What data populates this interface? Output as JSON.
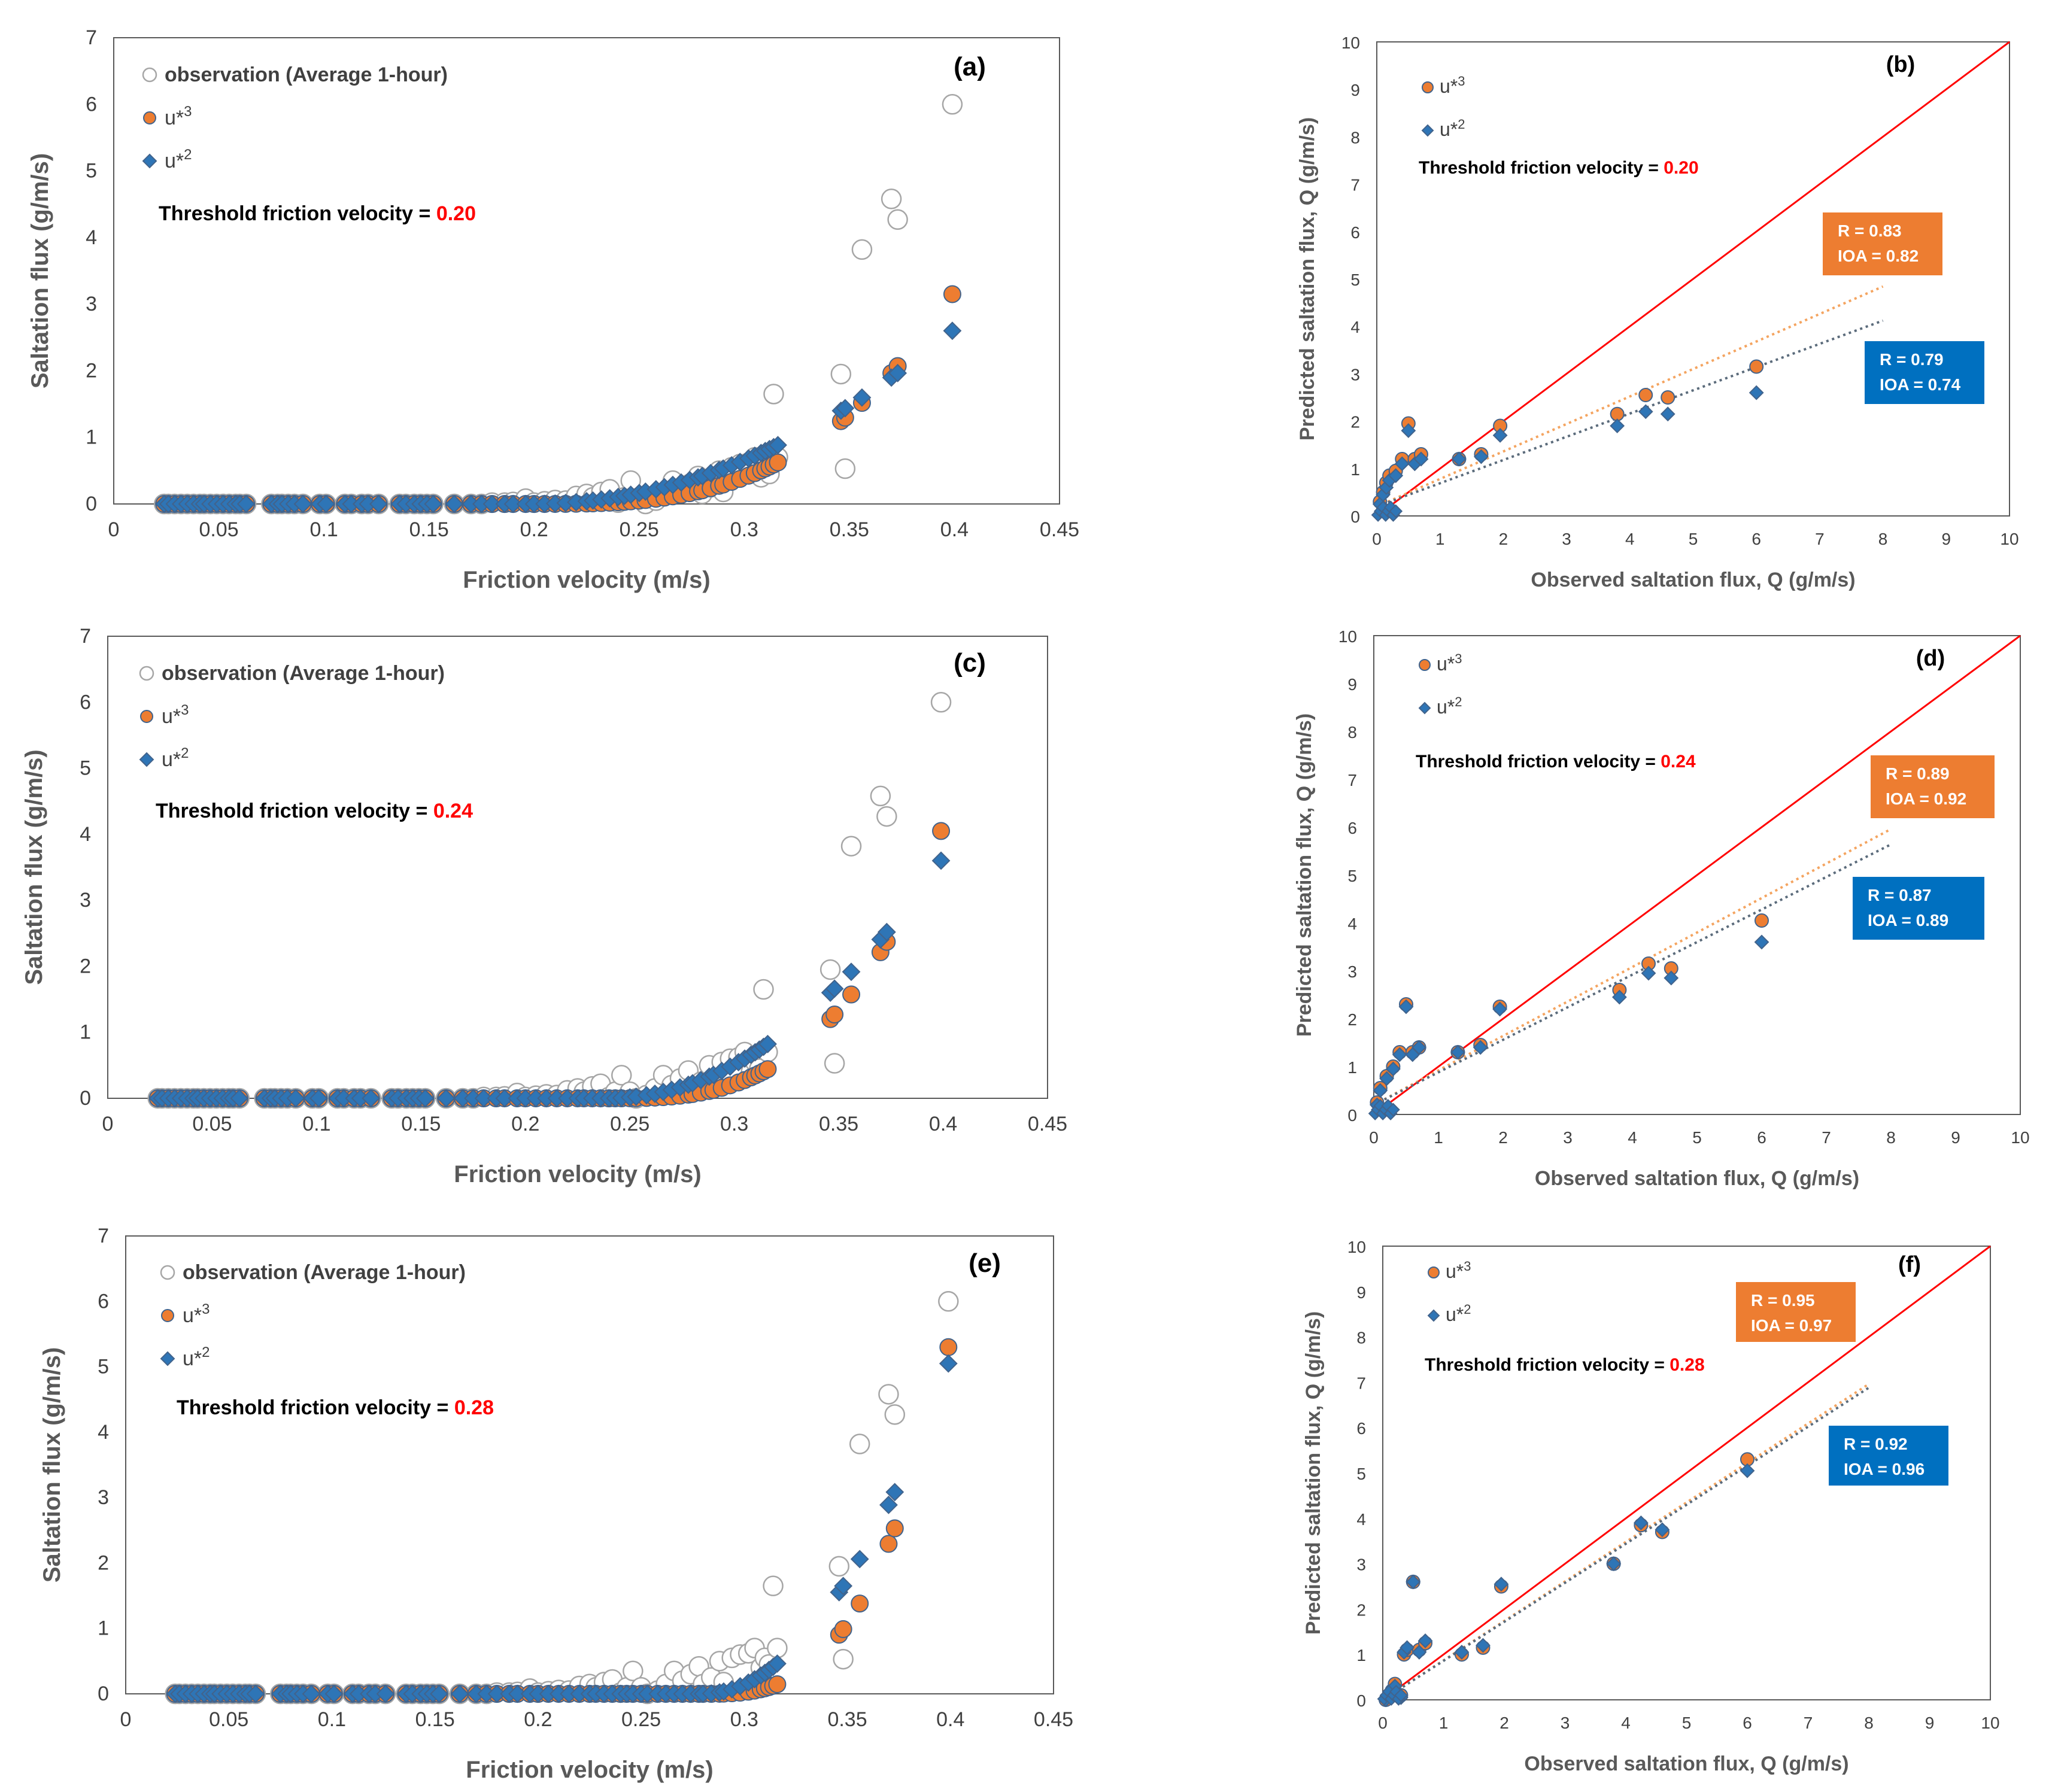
{
  "colors": {
    "observation_stroke": "#a6a6a6",
    "u3_fill": "#ed7d31",
    "u2_fill": "#2e75b6",
    "marker_stroke": "#41638c",
    "one_to_one": "#ff0000",
    "trend_u3": "#f4a460",
    "trend_u2": "#5b6b7b",
    "highlight": "#ff0000",
    "box_u3": "#ed7d31",
    "box_u2": "#0070c0",
    "axis": "#595959",
    "text": "#404040"
  },
  "chart_data": [
    {
      "panel": "(a)",
      "type": "scatter",
      "xlabel": "Friction velocity (m/s)",
      "ylabel": "Saltation flux (g/m/s)",
      "xlim": [
        0,
        0.45
      ],
      "ylim": [
        0,
        7
      ],
      "xticks": [
        "0",
        "0.05",
        "0.1",
        "0.15",
        "0.2",
        "0.25",
        "0.3",
        "0.35",
        "0.4",
        "0.45"
      ],
      "yticks": [
        "0",
        "1",
        "2",
        "3",
        "4",
        "5",
        "6",
        "7"
      ],
      "legend": [
        {
          "label": "observation (Average 1-hour)",
          "sup": ""
        },
        {
          "label": "u*",
          "sup": "3"
        },
        {
          "label": "u*",
          "sup": "2"
        }
      ],
      "threshold_label": "Threshold friction velocity = ",
      "threshold_value": "0.20",
      "model": {
        "threshold": 0.2,
        "series": [
          {
            "name": "u*3",
            "power": 3,
            "scale": 1.02
          },
          {
            "name": "u*2",
            "power": 2,
            "scale": 0.85
          }
        ]
      }
    },
    {
      "panel": "(c)",
      "type": "scatter",
      "xlabel": "Friction velocity (m/s)",
      "ylabel": "Saltation flux (g/m/s)",
      "xlim": [
        0,
        0.45
      ],
      "ylim": [
        0,
        7
      ],
      "xticks": [
        "0",
        "0.05",
        "0.1",
        "0.15",
        "0.2",
        "0.25",
        "0.3",
        "0.35",
        "0.4",
        "0.45"
      ],
      "yticks": [
        "0",
        "1",
        "2",
        "3",
        "4",
        "5",
        "6",
        "7"
      ],
      "legend": [
        {
          "label": "observation (Average 1-hour)",
          "sup": ""
        },
        {
          "label": "u*",
          "sup": "3"
        },
        {
          "label": "u*",
          "sup": "2"
        }
      ],
      "threshold_label": "Threshold friction velocity = ",
      "threshold_value": "0.24",
      "model": {
        "threshold": 0.24,
        "series": [
          {
            "name": "u*3",
            "power": 3,
            "scale": 1.0
          },
          {
            "name": "u*2",
            "power": 2,
            "scale": 0.9
          }
        ]
      }
    },
    {
      "panel": "(e)",
      "type": "scatter",
      "xlabel": "Friction velocity (m/s)",
      "ylabel": "Saltation flux (g/m/s)",
      "xlim": [
        0,
        0.45
      ],
      "ylim": [
        0,
        7
      ],
      "xticks": [
        "0",
        "0.05",
        "0.1",
        "0.15",
        "0.2",
        "0.25",
        "0.3",
        "0.35",
        "0.4",
        "0.45"
      ],
      "yticks": [
        "0",
        "1",
        "2",
        "3",
        "4",
        "5",
        "6",
        "7"
      ],
      "legend": [
        {
          "label": "observation (Average 1-hour)",
          "sup": ""
        },
        {
          "label": "u*",
          "sup": "3"
        },
        {
          "label": "u*",
          "sup": "2"
        }
      ],
      "threshold_label": "Threshold friction velocity = ",
      "threshold_value": "0.28",
      "model": {
        "threshold": 0.28,
        "series": [
          {
            "name": "u*3",
            "power": 3,
            "scale": 1.0
          },
          {
            "name": "u*2",
            "power": 2,
            "scale": 0.96
          }
        ]
      }
    },
    {
      "panel": "(b)",
      "type": "scatter",
      "xlabel": "Observed saltation flux, Q (g/m/s)",
      "ylabel": "Predicted saltation flux, Q (g/m/s)",
      "xlim": [
        0,
        10
      ],
      "ylim": [
        0,
        10
      ],
      "xticks": [
        "0",
        "1",
        "2",
        "3",
        "4",
        "5",
        "6",
        "7",
        "8",
        "9",
        "10"
      ],
      "yticks": [
        "0",
        "1",
        "2",
        "3",
        "4",
        "5",
        "6",
        "7",
        "8",
        "9",
        "10"
      ],
      "legend": [
        {
          "label": "u*",
          "sup": "3"
        },
        {
          "label": "u*",
          "sup": "2"
        }
      ],
      "threshold_label": "Threshold friction velocity = ",
      "threshold_value": "0.20",
      "stats_u3": [
        "R = 0.83",
        "IOA = 0.82"
      ],
      "stats_u2": [
        "R = 0.79",
        "IOA = 0.74"
      ],
      "trend_u3": {
        "slope": 0.58,
        "intercept": 0.2
      },
      "trend_u2": {
        "slope": 0.49,
        "intercept": 0.2
      },
      "series": [
        {
          "name": "u*3",
          "points": [
            [
              0.05,
              0.3
            ],
            [
              0.1,
              0.5
            ],
            [
              0.15,
              0.7
            ],
            [
              0.2,
              0.85
            ],
            [
              0.3,
              0.95
            ],
            [
              0.4,
              1.2
            ],
            [
              0.5,
              1.95
            ],
            [
              0.6,
              1.2
            ],
            [
              0.7,
              1.3
            ],
            [
              1.3,
              1.2
            ],
            [
              1.65,
              1.3
            ],
            [
              1.95,
              1.9
            ],
            [
              3.8,
              2.15
            ],
            [
              4.25,
              2.55
            ],
            [
              4.6,
              2.5
            ],
            [
              6.0,
              3.15
            ]
          ]
        },
        {
          "name": "u*2",
          "points": [
            [
              0.05,
              0.25
            ],
            [
              0.1,
              0.45
            ],
            [
              0.15,
              0.6
            ],
            [
              0.2,
              0.75
            ],
            [
              0.3,
              0.85
            ],
            [
              0.4,
              1.1
            ],
            [
              0.5,
              1.8
            ],
            [
              0.6,
              1.1
            ],
            [
              0.7,
              1.2
            ],
            [
              1.3,
              1.2
            ],
            [
              1.65,
              1.25
            ],
            [
              1.95,
              1.7
            ],
            [
              3.8,
              1.9
            ],
            [
              4.25,
              2.2
            ],
            [
              4.6,
              2.15
            ],
            [
              6.0,
              2.6
            ]
          ]
        }
      ]
    },
    {
      "panel": "(d)",
      "type": "scatter",
      "xlabel": "Observed saltation flux, Q (g/m/s)",
      "ylabel": "Predicted saltation flux, Q (g/m/s)",
      "xlim": [
        0,
        10
      ],
      "ylim": [
        0,
        10
      ],
      "xticks": [
        "0",
        "1",
        "2",
        "3",
        "4",
        "5",
        "6",
        "7",
        "8",
        "9",
        "10"
      ],
      "yticks": [
        "0",
        "1",
        "2",
        "3",
        "4",
        "5",
        "6",
        "7",
        "8",
        "9",
        "10"
      ],
      "legend": [
        {
          "label": "u*",
          "sup": "3"
        },
        {
          "label": "u*",
          "sup": "2"
        }
      ],
      "threshold_label": "Threshold friction velocity = ",
      "threshold_value": "0.24",
      "stats_u3": [
        "R = 0.89",
        "IOA = 0.92"
      ],
      "stats_u2": [
        "R = 0.87",
        "IOA = 0.89"
      ],
      "trend_u3": {
        "slope": 0.72,
        "intercept": 0.2
      },
      "trend_u2": {
        "slope": 0.68,
        "intercept": 0.2
      },
      "series": [
        {
          "name": "u*3",
          "points": [
            [
              0.05,
              0.25
            ],
            [
              0.1,
              0.55
            ],
            [
              0.2,
              0.8
            ],
            [
              0.3,
              1.0
            ],
            [
              0.4,
              1.3
            ],
            [
              0.5,
              2.3
            ],
            [
              0.6,
              1.3
            ],
            [
              0.7,
              1.4
            ],
            [
              1.3,
              1.3
            ],
            [
              1.65,
              1.45
            ],
            [
              1.95,
              2.25
            ],
            [
              3.8,
              2.6
            ],
            [
              4.25,
              3.15
            ],
            [
              4.6,
              3.05
            ],
            [
              6.0,
              4.05
            ]
          ]
        },
        {
          "name": "u*2",
          "points": [
            [
              0.05,
              0.2
            ],
            [
              0.1,
              0.5
            ],
            [
              0.2,
              0.75
            ],
            [
              0.3,
              0.95
            ],
            [
              0.4,
              1.25
            ],
            [
              0.5,
              2.25
            ],
            [
              0.6,
              1.25
            ],
            [
              0.7,
              1.4
            ],
            [
              1.3,
              1.3
            ],
            [
              1.65,
              1.4
            ],
            [
              1.95,
              2.2
            ],
            [
              3.8,
              2.45
            ],
            [
              4.25,
              2.95
            ],
            [
              4.6,
              2.85
            ],
            [
              6.0,
              3.6
            ]
          ]
        }
      ]
    },
    {
      "panel": "(f)",
      "type": "scatter",
      "xlabel": "Observed saltation flux, Q (g/m/s)",
      "ylabel": "Predicted saltation flux, Q (g/m/s)",
      "xlim": [
        0,
        10
      ],
      "ylim": [
        0,
        10
      ],
      "xticks": [
        "0",
        "1",
        "2",
        "3",
        "4",
        "5",
        "6",
        "7",
        "8",
        "9",
        "10"
      ],
      "yticks": [
        "0",
        "1",
        "2",
        "3",
        "4",
        "5",
        "6",
        "7",
        "8",
        "9",
        "10"
      ],
      "legend": [
        {
          "label": "u*",
          "sup": "3"
        },
        {
          "label": "u*",
          "sup": "2"
        }
      ],
      "threshold_label": "Threshold friction velocity = ",
      "threshold_value": "0.28",
      "stats_u3": [
        "R = 0.95",
        "IOA = 0.97"
      ],
      "stats_u2": [
        "R = 0.92",
        "IOA = 0.96"
      ],
      "trend_u3": {
        "slope": 0.87,
        "intercept": 0.0
      },
      "trend_u2": {
        "slope": 0.86,
        "intercept": 0.0
      },
      "series": [
        {
          "name": "u*3",
          "points": [
            [
              0.05,
              0.0
            ],
            [
              0.15,
              0.2
            ],
            [
              0.2,
              0.35
            ],
            [
              0.3,
              0.1
            ],
            [
              0.35,
              1.0
            ],
            [
              0.4,
              1.1
            ],
            [
              0.5,
              2.6
            ],
            [
              0.6,
              1.1
            ],
            [
              0.7,
              1.25
            ],
            [
              1.3,
              1.0
            ],
            [
              1.65,
              1.15
            ],
            [
              1.95,
              2.5
            ],
            [
              3.8,
              3.0
            ],
            [
              4.25,
              3.85
            ],
            [
              4.6,
              3.7
            ],
            [
              6.0,
              5.3
            ]
          ]
        },
        {
          "name": "u*2",
          "points": [
            [
              0.05,
              0.0
            ],
            [
              0.15,
              0.15
            ],
            [
              0.2,
              0.3
            ],
            [
              0.3,
              0.05
            ],
            [
              0.35,
              1.05
            ],
            [
              0.4,
              1.15
            ],
            [
              0.5,
              2.6
            ],
            [
              0.6,
              1.05
            ],
            [
              0.7,
              1.3
            ],
            [
              1.3,
              1.05
            ],
            [
              1.65,
              1.2
            ],
            [
              1.95,
              2.55
            ],
            [
              3.8,
              3.0
            ],
            [
              4.25,
              3.9
            ],
            [
              4.6,
              3.75
            ],
            [
              6.0,
              5.05
            ]
          ]
        }
      ]
    }
  ],
  "observations": [
    [
      0.024,
      0
    ],
    [
      0.026,
      0
    ],
    [
      0.029,
      0
    ],
    [
      0.032,
      0
    ],
    [
      0.035,
      0
    ],
    [
      0.038,
      0
    ],
    [
      0.041,
      0
    ],
    [
      0.043,
      0
    ],
    [
      0.046,
      0
    ],
    [
      0.049,
      0
    ],
    [
      0.052,
      0
    ],
    [
      0.055,
      0
    ],
    [
      0.058,
      0
    ],
    [
      0.06,
      0
    ],
    [
      0.063,
      0
    ],
    [
      0.075,
      0
    ],
    [
      0.078,
      0
    ],
    [
      0.08,
      0
    ],
    [
      0.083,
      0
    ],
    [
      0.086,
      0
    ],
    [
      0.09,
      0
    ],
    [
      0.098,
      0
    ],
    [
      0.101,
      0
    ],
    [
      0.11,
      0
    ],
    [
      0.113,
      0
    ],
    [
      0.118,
      0
    ],
    [
      0.121,
      0
    ],
    [
      0.126,
      0
    ],
    [
      0.136,
      0
    ],
    [
      0.139,
      0
    ],
    [
      0.143,
      0
    ],
    [
      0.146,
      0
    ],
    [
      0.149,
      0
    ],
    [
      0.152,
      0
    ],
    [
      0.162,
      0
    ],
    [
      0.17,
      0
    ],
    [
      0.175,
      0
    ],
    [
      0.18,
      0.02
    ],
    [
      0.186,
      0.02
    ],
    [
      0.19,
      0.03
    ],
    [
      0.196,
      0.08
    ],
    [
      0.2,
      0.02
    ],
    [
      0.205,
      0.04
    ],
    [
      0.21,
      0.06
    ],
    [
      0.215,
      0.05
    ],
    [
      0.22,
      0.12
    ],
    [
      0.225,
      0.15
    ],
    [
      0.228,
      0.1
    ],
    [
      0.232,
      0.18
    ],
    [
      0.236,
      0.22
    ],
    [
      0.24,
      0.02
    ],
    [
      0.243,
      0.1
    ],
    [
      0.246,
      0.35
    ],
    [
      0.25,
      0.1
    ],
    [
      0.253,
      0
    ],
    [
      0.258,
      0.05
    ],
    [
      0.262,
      0.15
    ],
    [
      0.266,
      0.35
    ],
    [
      0.27,
      0.2
    ],
    [
      0.274,
      0.3
    ],
    [
      0.278,
      0.42
    ],
    [
      0.28,
      0.15
    ],
    [
      0.284,
      0.25
    ],
    [
      0.288,
      0.5
    ],
    [
      0.29,
      0.18
    ],
    [
      0.294,
      0.55
    ],
    [
      0.298,
      0.6
    ],
    [
      0.302,
      0.62
    ],
    [
      0.305,
      0.7
    ],
    [
      0.308,
      0.4
    ],
    [
      0.31,
      0.55
    ],
    [
      0.312,
      0.45
    ],
    [
      0.314,
      1.65
    ],
    [
      0.316,
      0.7
    ],
    [
      0.346,
      1.95
    ],
    [
      0.348,
      0.53
    ],
    [
      0.356,
      3.82
    ],
    [
      0.37,
      4.58
    ],
    [
      0.373,
      4.27
    ],
    [
      0.399,
      6.0
    ]
  ],
  "u_values": [
    0.024,
    0.026,
    0.029,
    0.032,
    0.035,
    0.038,
    0.041,
    0.043,
    0.046,
    0.049,
    0.052,
    0.055,
    0.058,
    0.06,
    0.063,
    0.075,
    0.078,
    0.08,
    0.083,
    0.086,
    0.09,
    0.098,
    0.101,
    0.11,
    0.113,
    0.118,
    0.121,
    0.126,
    0.136,
    0.139,
    0.143,
    0.146,
    0.149,
    0.152,
    0.162,
    0.17,
    0.175,
    0.18,
    0.186,
    0.19,
    0.196,
    0.2,
    0.205,
    0.21,
    0.215,
    0.22,
    0.225,
    0.228,
    0.232,
    0.236,
    0.24,
    0.243,
    0.246,
    0.25,
    0.253,
    0.258,
    0.262,
    0.266,
    0.27,
    0.274,
    0.278,
    0.28,
    0.284,
    0.288,
    0.29,
    0.294,
    0.298,
    0.302,
    0.305,
    0.308,
    0.31,
    0.312,
    0.314,
    0.316,
    0.346,
    0.348,
    0.356,
    0.37,
    0.373,
    0.399
  ]
}
